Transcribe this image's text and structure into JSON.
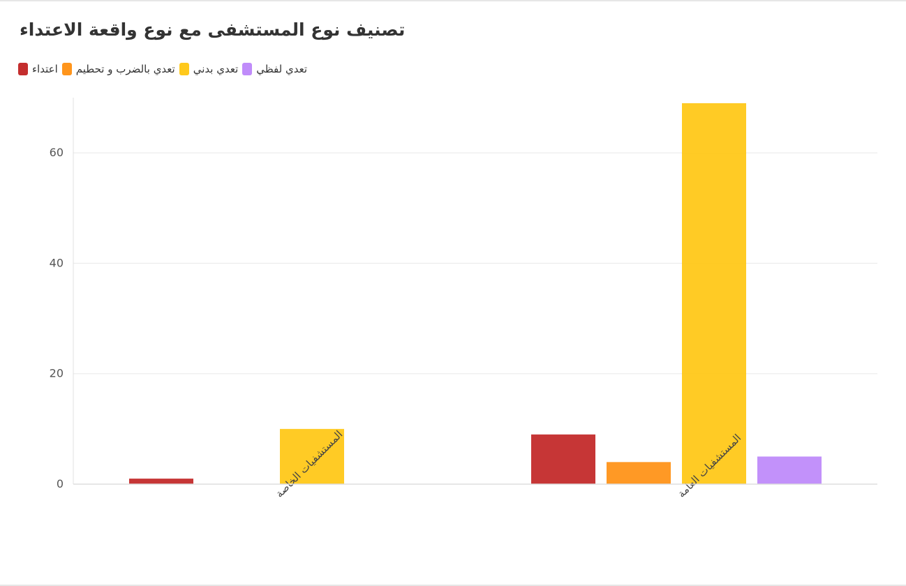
{
  "chart_data": {
    "type": "bar",
    "title": "تصنيف نوع المستشفى مع نوع واقعة الاعتداء",
    "categories": [
      "المستشفيات الخاصة",
      "المستشفيات العامة"
    ],
    "series": [
      {
        "name": "اعتداء",
        "color": "#c42e2e",
        "values": [
          1,
          9
        ]
      },
      {
        "name": "تعدي بالضرب و تحطيم",
        "color": "#ff951c",
        "values": [
          0,
          4
        ]
      },
      {
        "name": "تعدي بدني",
        "color": "#ffc91c",
        "values": [
          10,
          69
        ]
      },
      {
        "name": "تعدي لفظي",
        "color": "#c08cfa",
        "values": [
          0,
          5
        ]
      }
    ],
    "ylim": [
      0,
      70
    ],
    "yticks": [
      0,
      20,
      40,
      60
    ],
    "xlabel": "",
    "ylabel": "",
    "grid": true,
    "legend": "top-left"
  }
}
